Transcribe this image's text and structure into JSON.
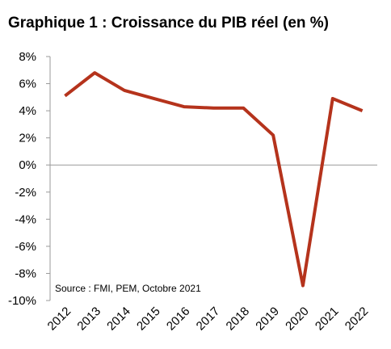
{
  "chart_data": {
    "type": "line",
    "title": "Graphique 1 : Croissance du PIB réel (en %)",
    "annotation": "Source : FMI, PEM, Octobre 2021",
    "categories": [
      "2012",
      "2013",
      "2014",
      "2015",
      "2016",
      "2017",
      "2018",
      "2019",
      "2020",
      "2021",
      "2022"
    ],
    "series": [
      {
        "color": "#b5331c",
        "values": [
          5.1,
          6.8,
          5.5,
          4.9,
          4.3,
          4.2,
          4.2,
          2.2,
          -8.9,
          4.9,
          4.0
        ]
      }
    ],
    "ylim": [
      -10,
      8
    ],
    "yticks": [
      {
        "value": -10,
        "label": "-10%"
      },
      {
        "value": -8,
        "label": "-8%"
      },
      {
        "value": -6,
        "label": "-6%"
      },
      {
        "value": -4,
        "label": "-4%"
      },
      {
        "value": -2,
        "label": "-2%"
      },
      {
        "value": 0,
        "label": "0%"
      },
      {
        "value": 2,
        "label": "2%"
      },
      {
        "value": 4,
        "label": "4%"
      },
      {
        "value": 6,
        "label": "6%"
      },
      {
        "value": 8,
        "label": "8%"
      }
    ],
    "grid": false
  }
}
